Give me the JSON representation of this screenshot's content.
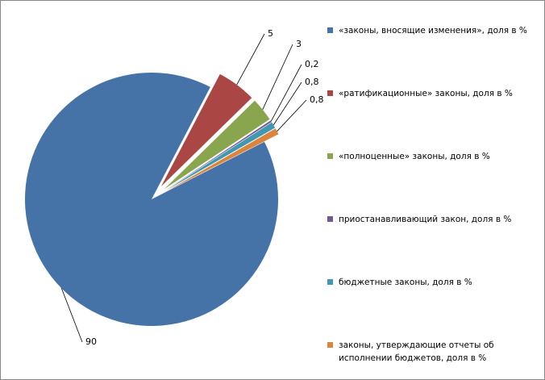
{
  "chart_data": {
    "type": "pie",
    "categories": [
      "«законы, вносящие изменения», доля в %",
      "«ратификационные» законы, доля в %",
      "«полноценные» законы, доля в %",
      "приостанавливающий закон, доля в %",
      "бюджетные законы, доля в %",
      "законы, утверждающие отчеты об исполнении бюджетов, доля в %"
    ],
    "values": [
      90,
      5,
      3,
      0.2,
      0.8,
      0.8
    ],
    "value_labels": [
      "90",
      "5",
      "3",
      "0,2",
      "0,8",
      "0,8"
    ],
    "colors": [
      "#4572a7",
      "#aa4643",
      "#89a54e",
      "#71588f",
      "#4198af",
      "#db843d"
    ],
    "legend": "right"
  }
}
